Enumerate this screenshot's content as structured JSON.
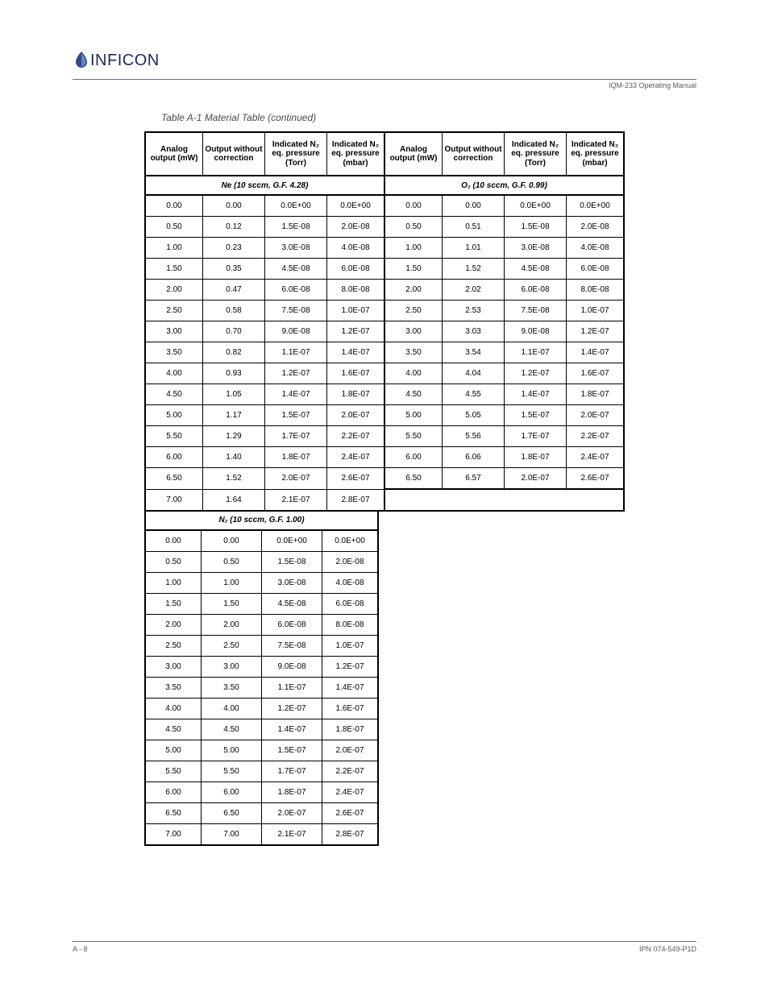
{
  "header": {
    "brand": "INFICON",
    "manual_label": "IQM-233 Operating Manual"
  },
  "title": "Table A-1 Material Table  (continued)",
  "columns_left": {
    "mw": "Analog output (mW)",
    "out": "Output without correction",
    "torr": "Indicated N₂ eq. pressure (Torr)",
    "mbar": "Indicated N₂ eq. pressure (mbar)"
  },
  "columns_right": {
    "mw": "Analog output (mW)",
    "out": "Output without correction",
    "torr": "Indicated N₂ eq. pressure (Torr)",
    "mbar": "Indicated N₂ eq. pressure (mbar)"
  },
  "section1_label": "Ne (10 sccm, G.F. 4.28)",
  "section1r_label": "O₂ (10 sccm, G.F. 0.99)",
  "section2_label": "N₂ (10 sccm, G.F. 1.00)",
  "rows_section1_left": [
    [
      "0.00",
      "0.00",
      "0.0E+00",
      "0.0E+00"
    ],
    [
      "0.50",
      "0.12",
      "1.5E-08",
      "2.0E-08"
    ],
    [
      "1.00",
      "0.23",
      "3.0E-08",
      "4.0E-08"
    ],
    [
      "1.50",
      "0.35",
      "4.5E-08",
      "6.0E-08"
    ],
    [
      "2.00",
      "0.47",
      "6.0E-08",
      "8.0E-08"
    ],
    [
      "2.50",
      "0.58",
      "7.5E-08",
      "1.0E-07"
    ],
    [
      "3.00",
      "0.70",
      "9.0E-08",
      "1.2E-07"
    ],
    [
      "3.50",
      "0.82",
      "1.1E-07",
      "1.4E-07"
    ],
    [
      "4.00",
      "0.93",
      "1.2E-07",
      "1.6E-07"
    ],
    [
      "4.50",
      "1.05",
      "1.4E-07",
      "1.8E-07"
    ],
    [
      "5.00",
      "1.17",
      "1.5E-07",
      "2.0E-07"
    ],
    [
      "5.50",
      "1.29",
      "1.7E-07",
      "2.2E-07"
    ],
    [
      "6.00",
      "1.40",
      "1.8E-07",
      "2.4E-07"
    ],
    [
      "6.50",
      "1.52",
      "2.0E-07",
      "2.6E-07"
    ],
    [
      "7.00",
      "1.64",
      "2.1E-07",
      "2.8E-07"
    ]
  ],
  "rows_section1_right": [
    [
      "0.00",
      "0.00",
      "0.0E+00",
      "0.0E+00"
    ],
    [
      "0.50",
      "0.51",
      "1.5E-08",
      "2.0E-08"
    ],
    [
      "1.00",
      "1.01",
      "3.0E-08",
      "4.0E-08"
    ],
    [
      "1.50",
      "1.52",
      "4.5E-08",
      "6.0E-08"
    ],
    [
      "2.00",
      "2.02",
      "6.0E-08",
      "8.0E-08"
    ],
    [
      "2.50",
      "2.53",
      "7.5E-08",
      "1.0E-07"
    ],
    [
      "3.00",
      "3.03",
      "9.0E-08",
      "1.2E-07"
    ],
    [
      "3.50",
      "3.54",
      "1.1E-07",
      "1.4E-07"
    ],
    [
      "4.00",
      "4.04",
      "1.2E-07",
      "1.6E-07"
    ],
    [
      "4.50",
      "4.55",
      "1.4E-07",
      "1.8E-07"
    ],
    [
      "5.00",
      "5.05",
      "1.5E-07",
      "2.0E-07"
    ],
    [
      "5.50",
      "5.56",
      "1.7E-07",
      "2.2E-07"
    ],
    [
      "6.00",
      "6.06",
      "1.8E-07",
      "2.4E-07"
    ],
    [
      "6.50",
      "6.57",
      "2.0E-07",
      "2.6E-07"
    ]
  ],
  "rows_section2": [
    [
      "0.00",
      "0.00",
      "0.0E+00",
      "0.0E+00"
    ],
    [
      "0.50",
      "0.50",
      "1.5E-08",
      "2.0E-08"
    ],
    [
      "1.00",
      "1.00",
      "3.0E-08",
      "4.0E-08"
    ],
    [
      "1.50",
      "1.50",
      "4.5E-08",
      "6.0E-08"
    ],
    [
      "2.00",
      "2.00",
      "6.0E-08",
      "8.0E-08"
    ],
    [
      "2.50",
      "2.50",
      "7.5E-08",
      "1.0E-07"
    ],
    [
      "3.00",
      "3.00",
      "9.0E-08",
      "1.2E-07"
    ],
    [
      "3.50",
      "3.50",
      "1.1E-07",
      "1.4E-07"
    ],
    [
      "4.00",
      "4.00",
      "1.2E-07",
      "1.6E-07"
    ],
    [
      "4.50",
      "4.50",
      "1.4E-07",
      "1.8E-07"
    ],
    [
      "5.00",
      "5.00",
      "1.5E-07",
      "2.0E-07"
    ],
    [
      "5.50",
      "5.50",
      "1.7E-07",
      "2.2E-07"
    ],
    [
      "6.00",
      "6.00",
      "1.8E-07",
      "2.4E-07"
    ],
    [
      "6.50",
      "6.50",
      "2.0E-07",
      "2.6E-07"
    ],
    [
      "7.00",
      "7.00",
      "2.1E-07",
      "2.8E-07"
    ]
  ],
  "footer": {
    "left": "A - 8",
    "right": "IPN 074-549-P1D"
  },
  "style": {
    "rule_color": "#5f6aa8",
    "logo_color": "#1a2a5a",
    "text_gray": "#595959"
  }
}
